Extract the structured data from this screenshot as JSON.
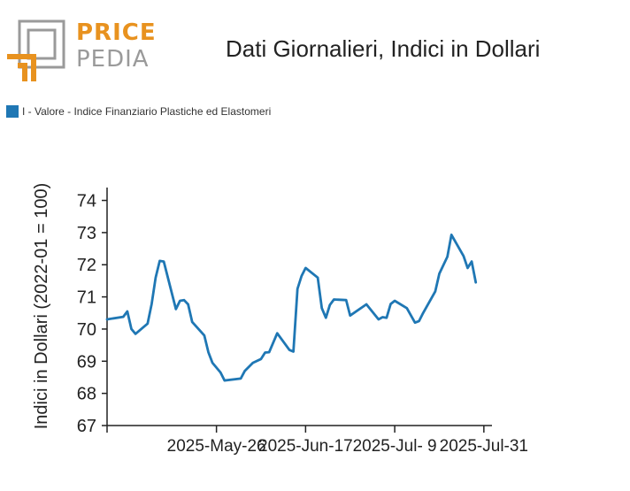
{
  "logo": {
    "word1": "PRICE",
    "word2": "PEDIA",
    "accent": "#e8921f",
    "grey": "#9a9a9a"
  },
  "chart_data": {
    "type": "line",
    "title": "Dati Giornalieri, Indici in Dollari",
    "ylabel": "Indici in Dollari (2022-01 = 100)",
    "xlabel": "",
    "ylim": [
      67,
      74.4
    ],
    "yticks": [
      67,
      68,
      69,
      70,
      71,
      72,
      73,
      74
    ],
    "xlim": [
      "2025-04-29",
      "2025-08-02"
    ],
    "xticks": [
      {
        "x": "2025-05-26",
        "label": "2025-May-26"
      },
      {
        "x": "2025-06-17",
        "label": "2025-Jun-17"
      },
      {
        "x": "2025-07-09",
        "label": "2025-Jul- 9"
      },
      {
        "x": "2025-07-31",
        "label": "2025-Jul-31"
      }
    ],
    "legend": "top-left",
    "grid": false,
    "series": [
      {
        "name": "I - Valore - Indice Finanziario Plastiche ed Elastomeri",
        "color": "#1f77b4",
        "points": [
          [
            "2025-04-29",
            70.3
          ],
          [
            "2025-05-03",
            70.38
          ],
          [
            "2025-05-04",
            70.55
          ],
          [
            "2025-05-05",
            70.0
          ],
          [
            "2025-05-06",
            69.85
          ],
          [
            "2025-05-09",
            70.17
          ],
          [
            "2025-05-10",
            70.78
          ],
          [
            "2025-05-11",
            71.6
          ],
          [
            "2025-05-12",
            72.12
          ],
          [
            "2025-05-13",
            72.1
          ],
          [
            "2025-05-16",
            70.62
          ],
          [
            "2025-05-17",
            70.88
          ],
          [
            "2025-05-18",
            70.9
          ],
          [
            "2025-05-19",
            70.77
          ],
          [
            "2025-05-20",
            70.22
          ],
          [
            "2025-05-23",
            69.8
          ],
          [
            "2025-05-24",
            69.28
          ],
          [
            "2025-05-25",
            68.95
          ],
          [
            "2025-05-27",
            68.65
          ],
          [
            "2025-05-28",
            68.4
          ],
          [
            "2025-06-01",
            68.46
          ],
          [
            "2025-06-02",
            68.7
          ],
          [
            "2025-06-04",
            68.95
          ],
          [
            "2025-06-06",
            69.07
          ],
          [
            "2025-06-07",
            69.27
          ],
          [
            "2025-06-08",
            69.28
          ],
          [
            "2025-06-10",
            69.87
          ],
          [
            "2025-06-13",
            69.35
          ],
          [
            "2025-06-14",
            69.3
          ],
          [
            "2025-06-15",
            71.25
          ],
          [
            "2025-06-16",
            71.65
          ],
          [
            "2025-06-17",
            71.9
          ],
          [
            "2025-06-20",
            71.6
          ],
          [
            "2025-06-21",
            70.65
          ],
          [
            "2025-06-22",
            70.35
          ],
          [
            "2025-06-23",
            70.75
          ],
          [
            "2025-06-24",
            70.92
          ],
          [
            "2025-06-27",
            70.9
          ],
          [
            "2025-06-28",
            70.42
          ],
          [
            "2025-07-02",
            70.77
          ],
          [
            "2025-07-05",
            70.3
          ],
          [
            "2025-07-06",
            70.37
          ],
          [
            "2025-07-07",
            70.35
          ],
          [
            "2025-07-08",
            70.78
          ],
          [
            "2025-07-09",
            70.88
          ],
          [
            "2025-07-12",
            70.65
          ],
          [
            "2025-07-14",
            70.2
          ],
          [
            "2025-07-15",
            70.25
          ],
          [
            "2025-07-16",
            70.5
          ],
          [
            "2025-07-19",
            71.17
          ],
          [
            "2025-07-20",
            71.72
          ],
          [
            "2025-07-22",
            72.25
          ],
          [
            "2025-07-23",
            72.93
          ],
          [
            "2025-07-26",
            72.27
          ],
          [
            "2025-07-27",
            71.9
          ],
          [
            "2025-07-28",
            72.1
          ],
          [
            "2025-07-29",
            71.45
          ]
        ]
      }
    ]
  }
}
